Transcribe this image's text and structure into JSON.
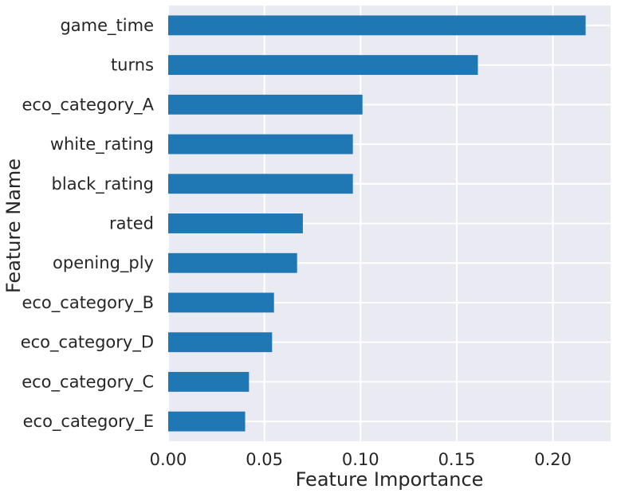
{
  "chart_data": {
    "type": "bar",
    "orientation": "horizontal",
    "title": "",
    "xlabel": "Feature Importance",
    "ylabel": "Feature Name",
    "xlim": [
      0,
      0.23
    ],
    "xticks": [
      0.0,
      0.05,
      0.1,
      0.15,
      0.2
    ],
    "xtick_labels": [
      "0.00",
      "0.05",
      "0.10",
      "0.15",
      "0.20"
    ],
    "grid": true,
    "legend": "none",
    "categories": [
      "game_time",
      "turns",
      "eco_category_A",
      "white_rating",
      "black_rating",
      "rated",
      "opening_ply",
      "eco_category_B",
      "eco_category_D",
      "eco_category_C",
      "eco_category_E"
    ],
    "values": [
      0.217,
      0.161,
      0.101,
      0.096,
      0.096,
      0.07,
      0.067,
      0.055,
      0.054,
      0.042,
      0.04
    ]
  },
  "colors": {
    "bar": "#1f77b4",
    "plot_background": "#eaeaf2",
    "grid": "#ffffff"
  }
}
